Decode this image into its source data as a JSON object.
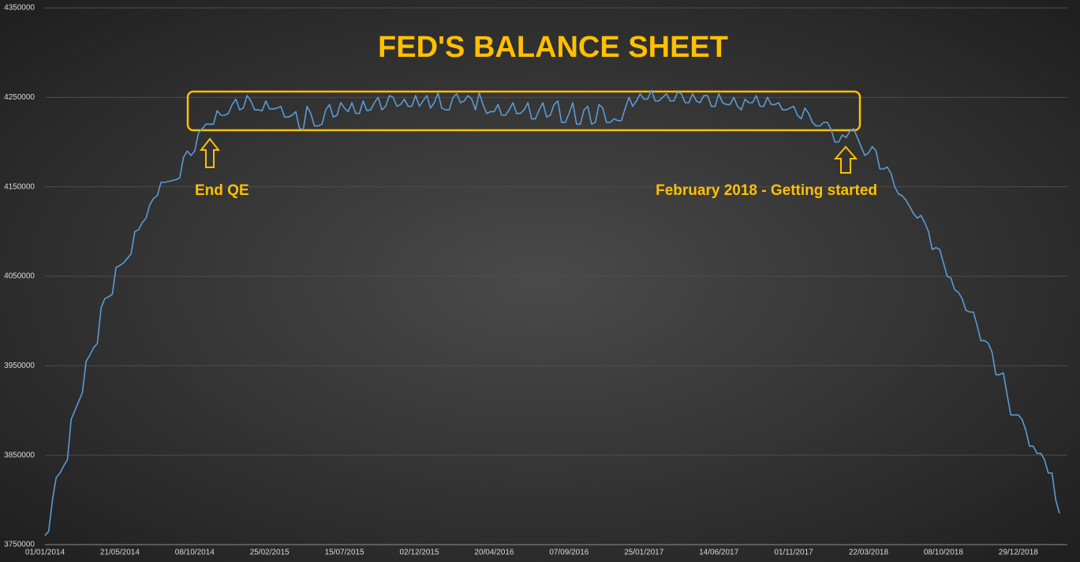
{
  "chart_data": {
    "type": "line",
    "title": "FED'S BALANCE SHEET",
    "annotations": [
      "End QE",
      "February 2018 - Getting started"
    ],
    "color": "#5b9bd5",
    "grid": true,
    "ylim": [
      3750000,
      4350000
    ],
    "yticks": [
      3750000,
      3850000,
      3950000,
      4050000,
      4150000,
      4250000,
      4350000
    ],
    "categories": [
      "01/01/2014",
      null,
      null,
      null,
      null,
      null,
      null,
      null,
      null,
      null,
      null,
      null,
      null,
      null,
      null,
      null,
      null,
      null,
      null,
      null,
      "21/05/2014",
      null,
      null,
      null,
      null,
      null,
      null,
      null,
      null,
      null,
      null,
      null,
      null,
      null,
      null,
      null,
      null,
      null,
      null,
      null,
      "08/10/2014",
      null,
      null,
      null,
      null,
      null,
      null,
      null,
      null,
      null,
      null,
      null,
      null,
      null,
      null,
      null,
      null,
      null,
      null,
      null,
      "25/02/2015",
      null,
      null,
      null,
      null,
      null,
      null,
      null,
      null,
      null,
      null,
      null,
      null,
      null,
      null,
      null,
      null,
      null,
      null,
      null,
      "15/07/2015",
      null,
      null,
      null,
      null,
      null,
      null,
      null,
      null,
      null,
      null,
      null,
      null,
      null,
      null,
      null,
      null,
      null,
      null,
      null,
      "02/12/2015",
      null,
      null,
      null,
      null,
      null,
      null,
      null,
      null,
      null,
      null,
      null,
      null,
      null,
      null,
      null,
      null,
      null,
      null,
      null,
      "20/04/2016",
      null,
      null,
      null,
      null,
      null,
      null,
      null,
      null,
      null,
      null,
      null,
      null,
      null,
      null,
      null,
      null,
      null,
      null,
      null,
      "07/09/2016",
      null,
      null,
      null,
      null,
      null,
      null,
      null,
      null,
      null,
      null,
      null,
      null,
      null,
      null,
      null,
      null,
      null,
      null,
      null,
      "25/01/2017",
      null,
      null,
      null,
      null,
      null,
      null,
      null,
      null,
      null,
      null,
      null,
      null,
      null,
      null,
      null,
      null,
      null,
      null,
      null,
      "14/06/2017",
      null,
      null,
      null,
      null,
      null,
      null,
      null,
      null,
      null,
      null,
      null,
      null,
      null,
      null,
      null,
      null,
      null,
      null,
      null,
      "01/11/2017",
      null,
      null,
      null,
      null,
      null,
      null,
      null,
      null,
      null,
      null,
      null,
      null,
      null,
      null,
      null,
      null,
      null,
      null,
      null,
      "22/03/2018",
      null,
      null,
      null,
      null,
      null,
      null,
      null,
      null,
      null,
      null,
      null,
      null,
      null,
      null,
      null,
      null,
      null,
      null,
      null,
      "08/10/2018",
      null,
      null,
      null,
      null,
      null,
      null,
      null,
      null,
      null,
      null,
      null,
      null,
      null,
      null,
      null,
      null,
      null,
      null,
      null,
      "29/12/2018",
      null,
      null,
      null,
      null,
      null,
      null,
      null,
      null,
      null,
      null,
      null
    ],
    "values": [
      3760000,
      3765000,
      3800000,
      3825000,
      3830000,
      3838000,
      3845000,
      3890000,
      3900000,
      3910000,
      3920000,
      3955000,
      3962000,
      3970000,
      3975000,
      4015000,
      4025000,
      4027000,
      4030000,
      4060000,
      4062000,
      4065000,
      4070000,
      4075000,
      4100000,
      4102000,
      4110000,
      4115000,
      4130000,
      4137000,
      4140000,
      4155000,
      4155000,
      4156000,
      4157000,
      4158000,
      4160000,
      4183000,
      4190000,
      4185000,
      4190000,
      4210000,
      4215000,
      4220000,
      4220000,
      4220000,
      4235000,
      4230000,
      4230000,
      4232000,
      4242000,
      4248000,
      4236000,
      4238000,
      4252000,
      4246000,
      4236000,
      4236000,
      4235000,
      4246000,
      4237000,
      4237000,
      4238000,
      4240000,
      4228000,
      4228000,
      4230000,
      4234000,
      4215000,
      4214000,
      4240000,
      4232000,
      4218000,
      4218000,
      4220000,
      4236000,
      4242000,
      4228000,
      4230000,
      4244000,
      4238000,
      4234000,
      4244000,
      4232000,
      4232000,
      4246000,
      4235000,
      4236000,
      4244000,
      4250000,
      4236000,
      4240000,
      4252000,
      4250000,
      4240000,
      4242000,
      4248000,
      4240000,
      4240000,
      4252000,
      4240000,
      4246000,
      4252000,
      4238000,
      4244000,
      4255000,
      4238000,
      4236000,
      4236000,
      4250000,
      4254000,
      4244000,
      4246000,
      4252000,
      4248000,
      4236000,
      4255000,
      4242000,
      4232000,
      4234000,
      4234000,
      4242000,
      4230000,
      4230000,
      4236000,
      4244000,
      4232000,
      4232000,
      4236000,
      4244000,
      4226000,
      4226000,
      4236000,
      4244000,
      4228000,
      4230000,
      4242000,
      4246000,
      4222000,
      4222000,
      4232000,
      4244000,
      4220000,
      4220000,
      4236000,
      4240000,
      4220000,
      4222000,
      4242000,
      4238000,
      4222000,
      4222000,
      4226000,
      4224000,
      4224000,
      4238000,
      4250000,
      4240000,
      4246000,
      4254000,
      4248000,
      4248000,
      4258000,
      4246000,
      4246000,
      4250000,
      4254000,
      4246000,
      4246000,
      4256000,
      4254000,
      4244000,
      4244000,
      4254000,
      4246000,
      4244000,
      4252000,
      4252000,
      4240000,
      4240000,
      4254000,
      4244000,
      4242000,
      4242000,
      4250000,
      4240000,
      4236000,
      4248000,
      4244000,
      4244000,
      4252000,
      4240000,
      4240000,
      4250000,
      4242000,
      4242000,
      4244000,
      4236000,
      4236000,
      4238000,
      4240000,
      4230000,
      4226000,
      4238000,
      4232000,
      4222000,
      4218000,
      4218000,
      4222000,
      4222000,
      4214000,
      4200000,
      4200000,
      4208000,
      4205000,
      4212000,
      4215000,
      4205000,
      4195000,
      4185000,
      4188000,
      4195000,
      4190000,
      4170000,
      4170000,
      4172000,
      4165000,
      4150000,
      4142000,
      4140000,
      4135000,
      4128000,
      4120000,
      4115000,
      4118000,
      4110000,
      4100000,
      4080000,
      4082000,
      4080000,
      4065000,
      4050000,
      4048000,
      4035000,
      4032000,
      4025000,
      4012000,
      4010000,
      4010000,
      3995000,
      3978000,
      3978000,
      3975000,
      3965000,
      3940000,
      3940000,
      3942000,
      3918000,
      3895000,
      3895000,
      3895000,
      3890000,
      3878000,
      3860000,
      3860000,
      3852000,
      3852000,
      3845000,
      3830000,
      3830000,
      3800000,
      3785000
    ]
  }
}
